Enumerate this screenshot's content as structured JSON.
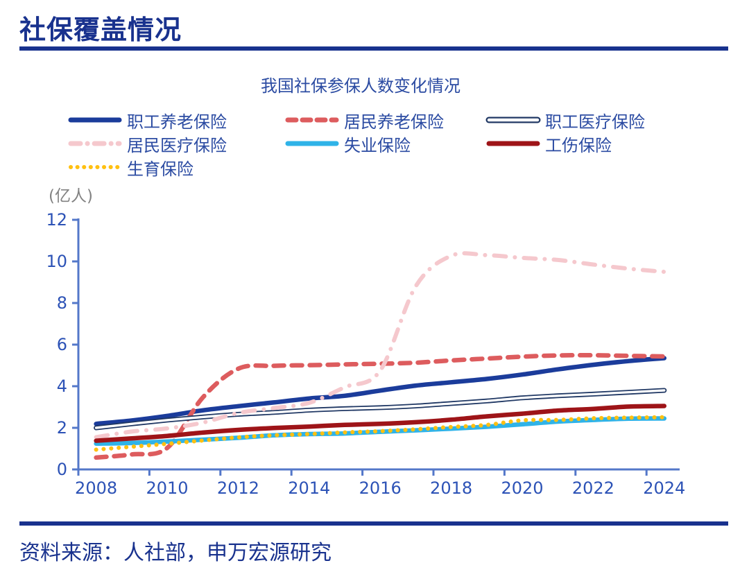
{
  "page": {
    "title": "社保覆盖情况",
    "source_note": "资料来源：人社部，申万宏源研究",
    "accent_color": "#19328E"
  },
  "chart_data": {
    "type": "line",
    "title": "我国社保参保人数变化情况",
    "unit_label": "(亿人)",
    "xlabel": "",
    "ylabel": "亿人",
    "x": [
      2008,
      2009,
      2010,
      2011,
      2012,
      2013,
      2014,
      2015,
      2016,
      2017,
      2018,
      2019,
      2020,
      2021,
      2022,
      2023,
      2024
    ],
    "x_tick_labels": [
      "2008",
      "2010",
      "2012",
      "2014",
      "2016",
      "2018",
      "2020",
      "2022",
      "2024"
    ],
    "ylim": [
      0,
      12
    ],
    "y_ticks": [
      0,
      2,
      4,
      6,
      8,
      10,
      12
    ],
    "grid": false,
    "legend_position": "top",
    "axis_color": "#5377C9",
    "tick_label_color": "#2C52B6",
    "series": [
      {
        "name": "职工养老保险",
        "style": "solid",
        "color": "#1B3C9B",
        "width": 6.5,
        "values": [
          2.19,
          2.35,
          2.57,
          2.84,
          3.04,
          3.22,
          3.41,
          3.54,
          3.79,
          4.03,
          4.19,
          4.35,
          4.56,
          4.81,
          5.03,
          5.21,
          5.35
        ]
      },
      {
        "name": "居民养老保险",
        "style": "dashed",
        "color": "#DD5C5E",
        "width": 6.5,
        "values": [
          0.57,
          0.72,
          1.03,
          3.45,
          4.84,
          4.98,
          5.01,
          5.05,
          5.08,
          5.13,
          5.24,
          5.33,
          5.42,
          5.48,
          5.49,
          5.46,
          5.43
        ]
      },
      {
        "name": "职工医疗保险",
        "style": "hollow",
        "color": "#203864",
        "width": 7,
        "values": [
          2.0,
          2.19,
          2.37,
          2.52,
          2.65,
          2.74,
          2.85,
          2.92,
          2.97,
          3.05,
          3.17,
          3.29,
          3.44,
          3.54,
          3.62,
          3.71,
          3.8
        ]
      },
      {
        "name": "居民医疗保险",
        "style": "dashdot",
        "color": "#F5C8CD",
        "width": 6,
        "values": [
          1.55,
          1.82,
          1.97,
          2.25,
          2.71,
          2.95,
          3.2,
          3.95,
          4.75,
          8.8,
          10.27,
          10.3,
          10.17,
          10.07,
          9.85,
          9.65,
          9.5
        ]
      },
      {
        "name": "失业保险",
        "style": "solid",
        "color": "#2FB3E8",
        "width": 6.5,
        "values": [
          1.24,
          1.27,
          1.34,
          1.43,
          1.52,
          1.64,
          1.7,
          1.73,
          1.81,
          1.88,
          1.96,
          2.05,
          2.17,
          2.3,
          2.38,
          2.44,
          2.45
        ]
      },
      {
        "name": "工伤保险",
        "style": "solid",
        "color": "#9E1418",
        "width": 6.5,
        "values": [
          1.38,
          1.49,
          1.61,
          1.77,
          1.9,
          1.99,
          2.06,
          2.14,
          2.19,
          2.27,
          2.39,
          2.55,
          2.68,
          2.83,
          2.91,
          3.02,
          3.05
        ]
      },
      {
        "name": "生育保险",
        "style": "dotted",
        "color": "#FFC011",
        "width": 6,
        "values": [
          0.95,
          1.09,
          1.23,
          1.39,
          1.54,
          1.64,
          1.7,
          1.78,
          1.84,
          1.93,
          2.04,
          2.14,
          2.36,
          2.38,
          2.46,
          2.49,
          2.51
        ]
      }
    ]
  }
}
